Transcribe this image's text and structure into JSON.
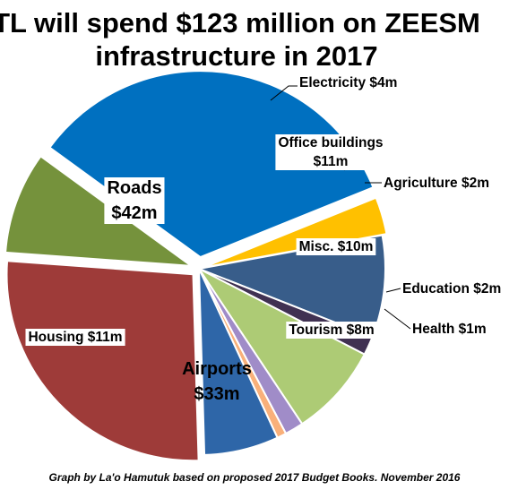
{
  "chart_data": {
    "type": "pie",
    "title_lines": [
      "TL will spend $123 million on ZEESM",
      "infrastructure in 2017"
    ],
    "footer": "Graph by La'o Hamutuk based on proposed 2017 Budget Books.  November 2016",
    "slices": [
      {
        "name": "Electricity",
        "value": 4,
        "color": "#FFC000",
        "label_lines": [
          "Electricity $4m"
        ]
      },
      {
        "name": "Office buildings",
        "value": 11,
        "color": "#385D8A",
        "label_lines": [
          "Office buildings",
          "$11m"
        ]
      },
      {
        "name": "Agriculture",
        "value": 2,
        "color": "#403152",
        "label_lines": [
          "Agriculture $2m"
        ]
      },
      {
        "name": "Misc.",
        "value": 10,
        "color": "#ADCB75",
        "label_lines": [
          "Misc. $10m"
        ]
      },
      {
        "name": "Education",
        "value": 2,
        "color": "#A08CC8",
        "label_lines": [
          "Education $2m"
        ]
      },
      {
        "name": "Health",
        "value": 1,
        "color": "#F9B07A",
        "label_lines": [
          "Health $1m"
        ]
      },
      {
        "name": "Tourism",
        "value": 8,
        "color": "#2E66A8",
        "label_lines": [
          "Tourism $8m"
        ]
      },
      {
        "name": "Airports",
        "value": 33,
        "color": "#9E3B39",
        "label_lines": [
          "Airports",
          "$33m"
        ]
      },
      {
        "name": "Housing",
        "value": 11,
        "color": "#75923C",
        "label_lines": [
          "Housing  $11m"
        ]
      },
      {
        "name": "Roads",
        "value": 42,
        "color": "#0070C0",
        "label_lines": [
          "Roads",
          "$42m"
        ]
      }
    ]
  }
}
